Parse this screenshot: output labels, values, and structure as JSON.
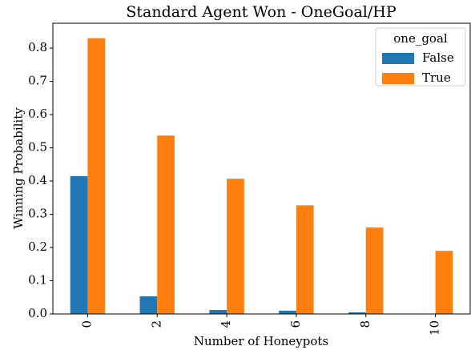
{
  "chart_data": {
    "type": "bar",
    "title": "Standard Agent Won - OneGoal/HP",
    "x_label": "Number of Honeypots",
    "y_label": "Winning Probability",
    "categories": [
      "0",
      "2",
      "4",
      "6",
      "8",
      "10"
    ],
    "series": [
      {
        "name": "False",
        "color": "#1f77b4",
        "values": [
          0.415,
          0.053,
          0.012,
          0.01,
          0.005,
          0
        ]
      },
      {
        "name": "True",
        "color": "#ff7f0e",
        "values": [
          0.83,
          0.537,
          0.407,
          0.327,
          0.26,
          0.19
        ]
      }
    ],
    "legend_title": "one_goal",
    "legend": "upper right",
    "ylim": [
      0,
      0.875
    ],
    "yticks": [
      {
        "value": 0,
        "label": "0.0"
      },
      0.1,
      0.2,
      0.3,
      0.4,
      0.5,
      0.6,
      0.7,
      0.8
    ],
    "grid": false
  }
}
